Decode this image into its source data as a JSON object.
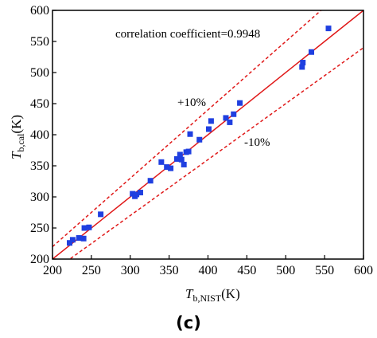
{
  "chart_data": {
    "type": "scatter",
    "title": "",
    "panel_label": "(c)",
    "xlabel": {
      "main": "T",
      "sub": "b,NIST",
      "unit": "(K)"
    },
    "ylabel": {
      "main": "T",
      "sub": "b,cal",
      "unit": "(K)"
    },
    "xlim": [
      200,
      600
    ],
    "ylim": [
      200,
      600
    ],
    "xticks": [
      200,
      250,
      300,
      350,
      400,
      450,
      500,
      550,
      600
    ],
    "yticks": [
      200,
      250,
      300,
      350,
      400,
      450,
      500,
      550,
      600
    ],
    "grid": false,
    "annotations": {
      "correlation": "correlation coefficient=0.9948",
      "plus": "+10%",
      "minus": "-10%"
    },
    "colors": {
      "points": "#1f3fe0",
      "lines": "#e01818"
    },
    "reference_lines": [
      {
        "name": "y=x",
        "slope": 1.0,
        "style": "solid"
      },
      {
        "name": "+10%",
        "slope": 1.1,
        "style": "dashed"
      },
      {
        "name": "-10%",
        "slope": 0.9,
        "style": "dashed"
      }
    ],
    "points": [
      [
        222,
        226
      ],
      [
        226,
        231
      ],
      [
        234,
        234
      ],
      [
        240,
        233
      ],
      [
        241,
        250
      ],
      [
        247,
        251
      ],
      [
        262,
        272
      ],
      [
        303,
        305
      ],
      [
        306,
        301
      ],
      [
        308,
        304
      ],
      [
        313,
        307
      ],
      [
        326,
        326
      ],
      [
        340,
        356
      ],
      [
        347,
        348
      ],
      [
        352,
        346
      ],
      [
        360,
        361
      ],
      [
        364,
        368
      ],
      [
        366,
        360
      ],
      [
        369,
        352
      ],
      [
        372,
        372
      ],
      [
        375,
        373
      ],
      [
        377,
        401
      ],
      [
        389,
        392
      ],
      [
        401,
        409
      ],
      [
        404,
        422
      ],
      [
        423,
        427
      ],
      [
        428,
        420
      ],
      [
        433,
        433
      ],
      [
        441,
        451
      ],
      [
        521,
        509
      ],
      [
        522,
        516
      ],
      [
        533,
        533
      ],
      [
        555,
        571
      ]
    ]
  }
}
